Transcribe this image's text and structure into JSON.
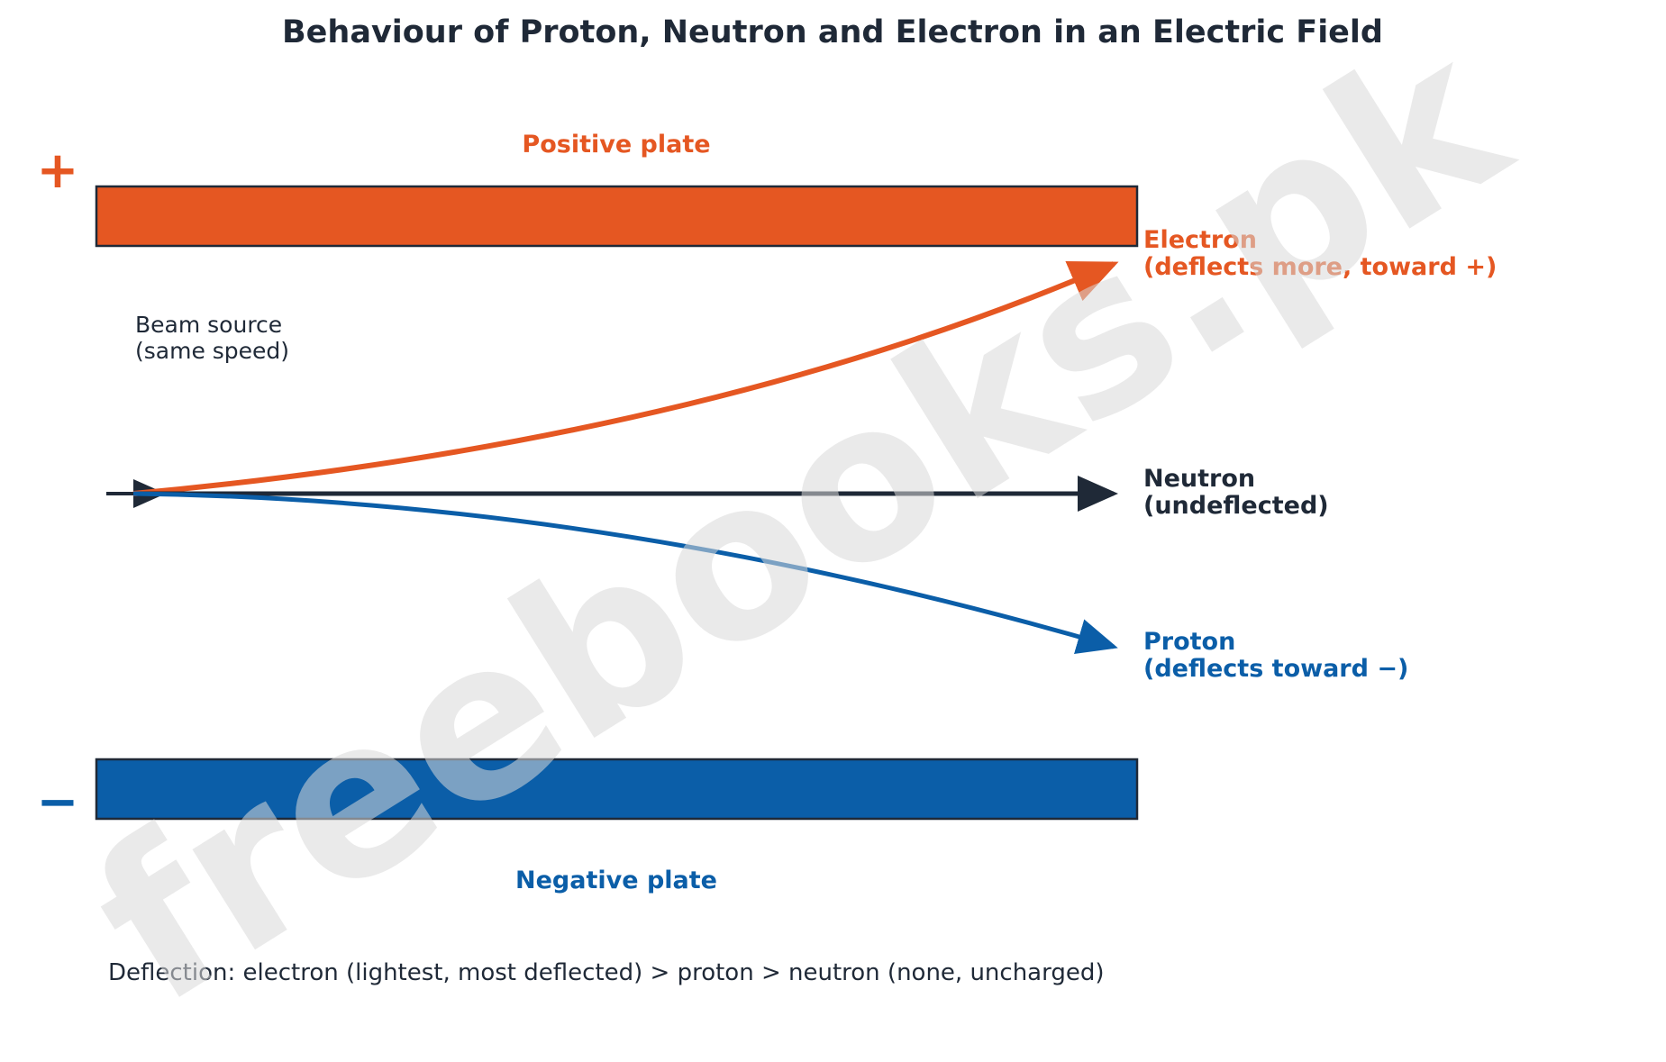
{
  "title": "Behaviour of Proton, Neutron and Electron in an Electric Field",
  "positive_plate": {
    "label": "Positive plate",
    "sign": "+",
    "color": "#e55722"
  },
  "negative_plate": {
    "label": "Negative plate",
    "sign": "−",
    "color": "#0b5ea8"
  },
  "beam_source": {
    "line1": "Beam source",
    "line2": "(same speed)"
  },
  "particles": {
    "electron": {
      "name": "Electron",
      "note": "(deflects more, toward +)",
      "color": "#e55722"
    },
    "neutron": {
      "name": "Neutron",
      "note": "(undeflected)",
      "color": "#1f2937"
    },
    "proton": {
      "name": "Proton",
      "note": "(deflects toward −)",
      "color": "#0b5ea8"
    }
  },
  "caption": "Deflection: electron (lightest, most deflected) > proton > neutron (none, uncharged)",
  "watermark": "freebooks.pk"
}
